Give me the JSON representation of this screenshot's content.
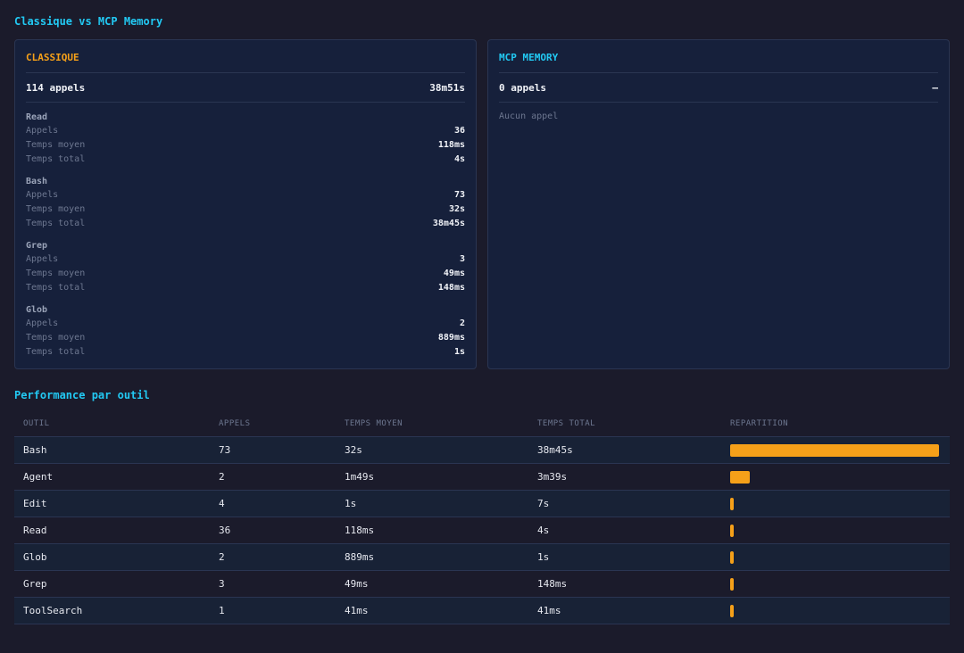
{
  "comparison_title": "Classique vs MCP Memory",
  "classic": {
    "title": "CLASSIQUE",
    "calls": "114 appels",
    "duration": "38m51s",
    "tools": [
      {
        "name": "Read",
        "metrics": [
          {
            "label": "Appels",
            "value": "36"
          },
          {
            "label": "Temps moyen",
            "value": "118ms"
          },
          {
            "label": "Temps total",
            "value": "4s"
          }
        ]
      },
      {
        "name": "Bash",
        "metrics": [
          {
            "label": "Appels",
            "value": "73"
          },
          {
            "label": "Temps moyen",
            "value": "32s"
          },
          {
            "label": "Temps total",
            "value": "38m45s"
          }
        ]
      },
      {
        "name": "Grep",
        "metrics": [
          {
            "label": "Appels",
            "value": "3"
          },
          {
            "label": "Temps moyen",
            "value": "49ms"
          },
          {
            "label": "Temps total",
            "value": "148ms"
          }
        ]
      },
      {
        "name": "Glob",
        "metrics": [
          {
            "label": "Appels",
            "value": "2"
          },
          {
            "label": "Temps moyen",
            "value": "889ms"
          },
          {
            "label": "Temps total",
            "value": "1s"
          }
        ]
      }
    ]
  },
  "mcp": {
    "title": "MCP MEMORY",
    "calls": "0 appels",
    "duration": "—",
    "empty_text": "Aucun appel"
  },
  "performance": {
    "title": "Performance par outil",
    "headers": [
      "OUTIL",
      "APPELS",
      "TEMPS MOYEN",
      "TEMPS TOTAL",
      "REPARTITION"
    ],
    "rows": [
      {
        "tool": "Bash",
        "calls": "73",
        "avg": "32s",
        "total": "38m45s",
        "share": 1.0
      },
      {
        "tool": "Agent",
        "calls": "2",
        "avg": "1m49s",
        "total": "3m39s",
        "share": 0.094
      },
      {
        "tool": "Edit",
        "calls": "4",
        "avg": "1s",
        "total": "7s",
        "share": 0.003
      },
      {
        "tool": "Read",
        "calls": "36",
        "avg": "118ms",
        "total": "4s",
        "share": 0.002
      },
      {
        "tool": "Glob",
        "calls": "2",
        "avg": "889ms",
        "total": "1s",
        "share": 0.0004
      },
      {
        "tool": "Grep",
        "calls": "3",
        "avg": "49ms",
        "total": "148ms",
        "share": 0.0001
      },
      {
        "tool": "ToolSearch",
        "calls": "1",
        "avg": "41ms",
        "total": "41ms",
        "share": 3e-05
      }
    ]
  },
  "colors": {
    "accent": "#22c9f3",
    "classic": "#f5a019",
    "mcp": "#22c9f3",
    "bar": "#f5a019"
  }
}
